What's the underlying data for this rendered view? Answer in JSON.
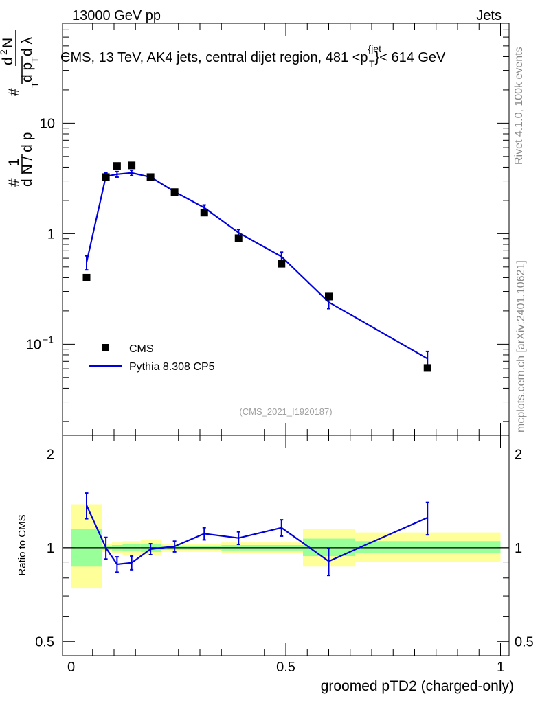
{
  "header": {
    "left": "13000 GeV pp",
    "right": "Jets"
  },
  "side_text": {
    "rivet": "Rivet 4.1.0,  100k events",
    "mcplots": "mcplots.cern.ch [arXiv:2401.10621]"
  },
  "colors": {
    "data": "#000000",
    "mc": "#0000dd",
    "band_inner": "#99ff99",
    "band_outer": "#ffff99"
  },
  "chart_data": [
    {
      "type": "scatter",
      "panel": "main",
      "title": "CMS, 13 TeV, AK4 jets, central dijet region, 481 <p",
      "title_sup": "{jet",
      "title_sub": "T",
      "title_tail": "}< 614 GeV",
      "watermark": "(CMS_2021_I1920187)",
      "ylabel_parts": [
        "#",
        "1",
        "d N / d p",
        "T",
        "#",
        "d p",
        "T",
        "d",
        "2",
        "N",
        "d λ"
      ],
      "yscale": "log",
      "ylim": [
        0.015,
        80
      ],
      "xlim": [
        -0.02,
        1.02
      ],
      "y_ticks": [
        {
          "value": 10,
          "label": "10"
        },
        {
          "value": 1,
          "label": "1"
        },
        {
          "value": 0.1,
          "label": "10",
          "sup": "−1"
        }
      ],
      "legend": {
        "position": "bottom-left",
        "entries": [
          "CMS",
          "Pythia 8.308 CP5"
        ]
      },
      "series": [
        {
          "name": "CMS",
          "style": "markers",
          "x": [
            0.036,
            0.081,
            0.107,
            0.141,
            0.185,
            0.241,
            0.31,
            0.39,
            0.49,
            0.6,
            0.83
          ],
          "y": [
            0.4,
            3.25,
            4.1,
            4.15,
            3.25,
            2.38,
            1.55,
            0.91,
            0.535,
            0.27,
            0.061
          ]
        },
        {
          "name": "Pythia 8.308 CP5",
          "style": "line",
          "x": [
            0.036,
            0.081,
            0.107,
            0.141,
            0.185,
            0.241,
            0.31,
            0.39,
            0.49,
            0.6,
            0.83
          ],
          "y": [
            0.55,
            3.3,
            3.45,
            3.55,
            3.25,
            2.4,
            1.72,
            1.02,
            0.62,
            0.24,
            0.074
          ],
          "err": [
            0.08,
            0.25,
            0.2,
            0.2,
            0.12,
            0.1,
            0.1,
            0.07,
            0.06,
            0.03,
            0.012
          ]
        }
      ]
    },
    {
      "type": "line",
      "panel": "ratio",
      "ylabel": "Ratio to CMS",
      "xlabel": "groomed pTD2 (charged-only)",
      "yscale": "log",
      "ylim": [
        0.45,
        2.3
      ],
      "xlim": [
        -0.02,
        1.02
      ],
      "x_ticks": [
        {
          "value": 0,
          "label": "0"
        },
        {
          "value": 0.5,
          "label": "0.5"
        },
        {
          "value": 1,
          "label": "1"
        }
      ],
      "y_ticks": [
        {
          "value": 2,
          "label": "2"
        },
        {
          "value": 1,
          "label": "1"
        },
        {
          "value": 0.5,
          "label": "0.5"
        }
      ],
      "bands": [
        {
          "x0": 0.0,
          "x1": 0.072,
          "inner": [
            0.87,
            1.15
          ],
          "outer": [
            0.74,
            1.38
          ]
        },
        {
          "x0": 0.072,
          "x1": 0.095,
          "inner": [
            0.985,
            1.015
          ],
          "outer": [
            0.97,
            1.03
          ]
        },
        {
          "x0": 0.095,
          "x1": 0.12,
          "inner": [
            0.98,
            1.02
          ],
          "outer": [
            0.96,
            1.04
          ]
        },
        {
          "x0": 0.12,
          "x1": 0.162,
          "inner": [
            0.975,
            1.025
          ],
          "outer": [
            0.95,
            1.05
          ]
        },
        {
          "x0": 0.162,
          "x1": 0.21,
          "inner": [
            0.97,
            1.03
          ],
          "outer": [
            0.95,
            1.06
          ]
        },
        {
          "x0": 0.21,
          "x1": 0.27,
          "inner": [
            0.985,
            1.015
          ],
          "outer": [
            0.97,
            1.03
          ]
        },
        {
          "x0": 0.27,
          "x1": 0.35,
          "inner": [
            0.985,
            1.015
          ],
          "outer": [
            0.97,
            1.03
          ]
        },
        {
          "x0": 0.35,
          "x1": 0.43,
          "inner": [
            0.98,
            1.02
          ],
          "outer": [
            0.96,
            1.04
          ]
        },
        {
          "x0": 0.43,
          "x1": 0.54,
          "inner": [
            0.98,
            1.02
          ],
          "outer": [
            0.96,
            1.04
          ]
        },
        {
          "x0": 0.54,
          "x1": 0.66,
          "inner": [
            0.94,
            1.07
          ],
          "outer": [
            0.87,
            1.15
          ]
        },
        {
          "x0": 0.66,
          "x1": 1.0,
          "inner": [
            0.96,
            1.05
          ],
          "outer": [
            0.9,
            1.12
          ]
        }
      ],
      "series": [
        {
          "name": "Pythia 8.308 CP5",
          "x": [
            0.036,
            0.081,
            0.107,
            0.141,
            0.185,
            0.241,
            0.31,
            0.39,
            0.49,
            0.6,
            0.83
          ],
          "y": [
            1.37,
            1.0,
            0.885,
            0.895,
            0.99,
            1.01,
            1.11,
            1.075,
            1.16,
            0.905,
            1.25
          ],
          "err": [
            0.13,
            0.08,
            0.05,
            0.045,
            0.04,
            0.04,
            0.05,
            0.05,
            0.07,
            0.09,
            0.15
          ]
        }
      ]
    }
  ]
}
